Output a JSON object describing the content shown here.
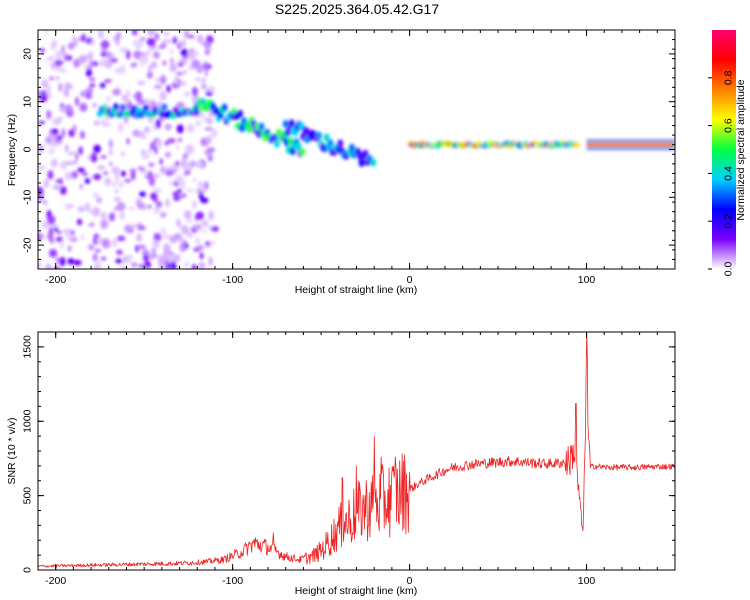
{
  "title": "S225.2025.364.05.42.G17",
  "colors": {
    "snr_line": "#ee2222",
    "colormap": [
      "#ffffff",
      "#7a00ff",
      "#0000ff",
      "#00d0ff",
      "#00ff40",
      "#ffff00",
      "#ff8000",
      "#ff0000",
      "#ff0070"
    ]
  },
  "chart_data": [
    {
      "type": "heatmap",
      "name": "spectrogram",
      "xlabel": "Height of straight line (km)",
      "ylabel": "Frequency (Hz)",
      "xlim": [
        -210,
        150
      ],
      "ylim": [
        -25,
        25
      ],
      "xticks": [
        -200,
        -100,
        0,
        100
      ],
      "xtick_labels": [
        "-200",
        "-100",
        "0",
        "100"
      ],
      "yticks": [
        -20,
        -10,
        0,
        10,
        20
      ],
      "ytick_labels": [
        "-20",
        "-10",
        "0",
        "10",
        "20"
      ],
      "colorbar": {
        "label": "Normalized spectral amplitude",
        "range": [
          0,
          1
        ],
        "ticks": [
          0.0,
          0.2,
          0.4,
          0.6,
          0.8
        ],
        "tick_labels": [
          "0.0",
          "0.2",
          "0.4",
          "0.6",
          "0.8"
        ]
      },
      "features": [
        {
          "region": "noise scatter",
          "x_range": [
            -210,
            -110
          ],
          "freq_range": [
            -25,
            25
          ],
          "amplitude": 0.1
        },
        {
          "region": "band",
          "x_range": [
            -175,
            -120
          ],
          "freq": 8,
          "amplitude": 0.35
        },
        {
          "region": "descending band",
          "x_range": [
            -120,
            -60
          ],
          "freq_start": 10,
          "freq_end": 0,
          "amplitude": 0.45
        },
        {
          "region": "secondary branch",
          "x_range": [
            -70,
            -20
          ],
          "freq_start": 5,
          "freq_end": -3,
          "amplitude": 0.3
        },
        {
          "region": "direct ray",
          "x_range": [
            0,
            95
          ],
          "freq": 1,
          "amplitude": 0.8
        },
        {
          "region": "steady line",
          "x_range": [
            100,
            150
          ],
          "freq": 1,
          "amplitude": 1.0
        }
      ]
    },
    {
      "type": "line",
      "name": "snr",
      "xlabel": "Height of straight line (km)",
      "ylabel": "SNR (10 * v/v)",
      "xlim": [
        -210,
        150
      ],
      "ylim": [
        0,
        1600
      ],
      "xticks": [
        -200,
        -100,
        0,
        100
      ],
      "xtick_labels": [
        "-200",
        "-100",
        "0",
        "100"
      ],
      "yticks": [
        0,
        500,
        1000,
        1500
      ],
      "ytick_labels": [
        "0",
        "500",
        "1000",
        "1500"
      ],
      "series": [
        {
          "name": "SNR",
          "x": [
            -210,
            -190,
            -170,
            -150,
            -130,
            -115,
            -105,
            -95,
            -88,
            -82,
            -76,
            -70,
            -62,
            -55,
            -50,
            -45,
            -40,
            -35,
            -30,
            -25,
            -20,
            -15,
            -10,
            -5,
            0,
            5,
            10,
            15,
            20,
            25,
            30,
            35,
            40,
            45,
            50,
            55,
            60,
            65,
            70,
            75,
            80,
            85,
            90,
            93,
            95,
            97,
            98,
            99,
            100,
            101,
            102,
            105,
            110,
            120,
            130,
            140,
            150
          ],
          "values": [
            25,
            30,
            35,
            40,
            45,
            55,
            70,
            120,
            180,
            160,
            130,
            90,
            70,
            90,
            130,
            200,
            280,
            330,
            380,
            420,
            430,
            460,
            490,
            520,
            540,
            580,
            610,
            640,
            670,
            690,
            700,
            710,
            715,
            720,
            725,
            730,
            730,
            725,
            720,
            715,
            715,
            720,
            730,
            800,
            600,
            350,
            250,
            700,
            1600,
            900,
            690,
            700,
            690,
            690,
            690,
            695,
            695
          ]
        }
      ],
      "spikes": [
        {
          "x": -77,
          "value": 250
        },
        {
          "x": -38,
          "value": 620
        },
        {
          "x": -30,
          "value": 700
        },
        {
          "x": -20,
          "value": 900
        },
        {
          "x": -16,
          "value": 760
        },
        {
          "x": -8,
          "value": 760
        },
        {
          "x": 94,
          "value": 1120
        },
        {
          "x": 100,
          "value": 1600
        }
      ]
    }
  ]
}
